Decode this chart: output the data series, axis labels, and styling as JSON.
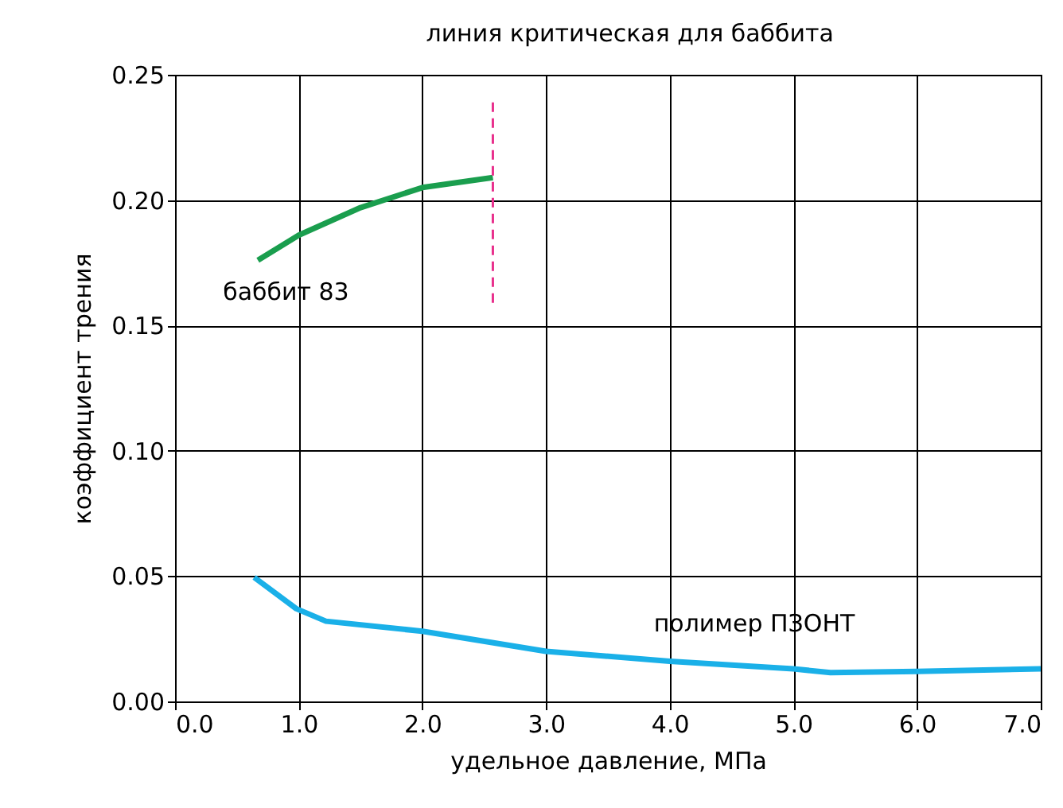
{
  "chart_data": {
    "type": "line",
    "xlabel": "удельное давление, МПа",
    "ylabel": "коэффициент трения",
    "xlim": [
      0,
      7
    ],
    "ylim": [
      0,
      0.25
    ],
    "xticks": [
      {
        "value": 0,
        "label": "0.0"
      },
      {
        "value": 1,
        "label": "1.0"
      },
      {
        "value": 2,
        "label": "2.0"
      },
      {
        "value": 3,
        "label": "3.0"
      },
      {
        "value": 4,
        "label": "4.0"
      },
      {
        "value": 5,
        "label": "5.0"
      },
      {
        "value": 6,
        "label": "6.0"
      },
      {
        "value": 7,
        "label": "7.0"
      }
    ],
    "yticks": [
      {
        "value": 0,
        "label": "0.00"
      },
      {
        "value": 0.05,
        "label": "0.05"
      },
      {
        "value": 0.1,
        "label": "0.10"
      },
      {
        "value": 0.15,
        "label": "0.15"
      },
      {
        "value": 0.2,
        "label": "0.20"
      },
      {
        "value": 0.25,
        "label": "0.25"
      }
    ],
    "grid": true,
    "series": [
      {
        "name": "баббит 83",
        "color": "#1a9e4e",
        "x": [
          0.67,
          1.0,
          1.5,
          2.0,
          2.57
        ],
        "values": [
          0.176,
          0.186,
          0.197,
          0.205,
          0.209
        ]
      },
      {
        "name": "полимер ПЗОНТ",
        "color": "#1ab0e8",
        "x": [
          0.64,
          0.98,
          1.22,
          2.0,
          3.0,
          4.0,
          5.0,
          5.3,
          6.0,
          7.0
        ],
        "values": [
          0.0495,
          0.037,
          0.032,
          0.028,
          0.02,
          0.016,
          0.013,
          0.0115,
          0.012,
          0.013
        ]
      },
      {
        "color": "#e8308c",
        "line_style": "dashed",
        "x": [
          2.57,
          2.57
        ],
        "values": [
          0.159,
          0.24
        ]
      }
    ],
    "annotations": [
      {
        "text": "линия критическая для баббита",
        "x": 2.57,
        "y": 0.24
      }
    ]
  }
}
